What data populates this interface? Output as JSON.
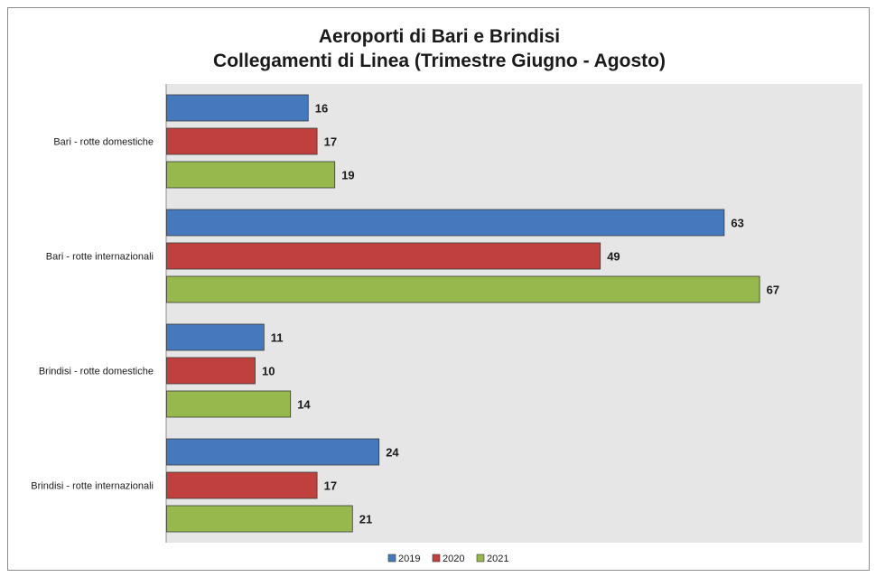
{
  "chart_data": {
    "type": "bar",
    "orientation": "horizontal",
    "title_line1": "Aeroporti di Bari e Brindisi",
    "title_line2": "Collegamenti di Linea (Trimestre Giugno - Agosto)",
    "categories": [
      "Bari - rotte domestiche",
      "Bari - rotte internazionali",
      "Brindisi - rotte domestiche",
      "Brindisi - rotte internazionali"
    ],
    "series": [
      {
        "name": "2019",
        "color": "#4479bd",
        "values": [
          16,
          63,
          11,
          24
        ]
      },
      {
        "name": "2020",
        "color": "#c0403e",
        "values": [
          17,
          49,
          10,
          17
        ]
      },
      {
        "name": "2021",
        "color": "#97b84d",
        "values": [
          19,
          67,
          14,
          21
        ]
      }
    ],
    "xlim": [
      0,
      70
    ],
    "grid": false,
    "legend_position": "bottom",
    "plot_background": "#e6e6e6"
  }
}
